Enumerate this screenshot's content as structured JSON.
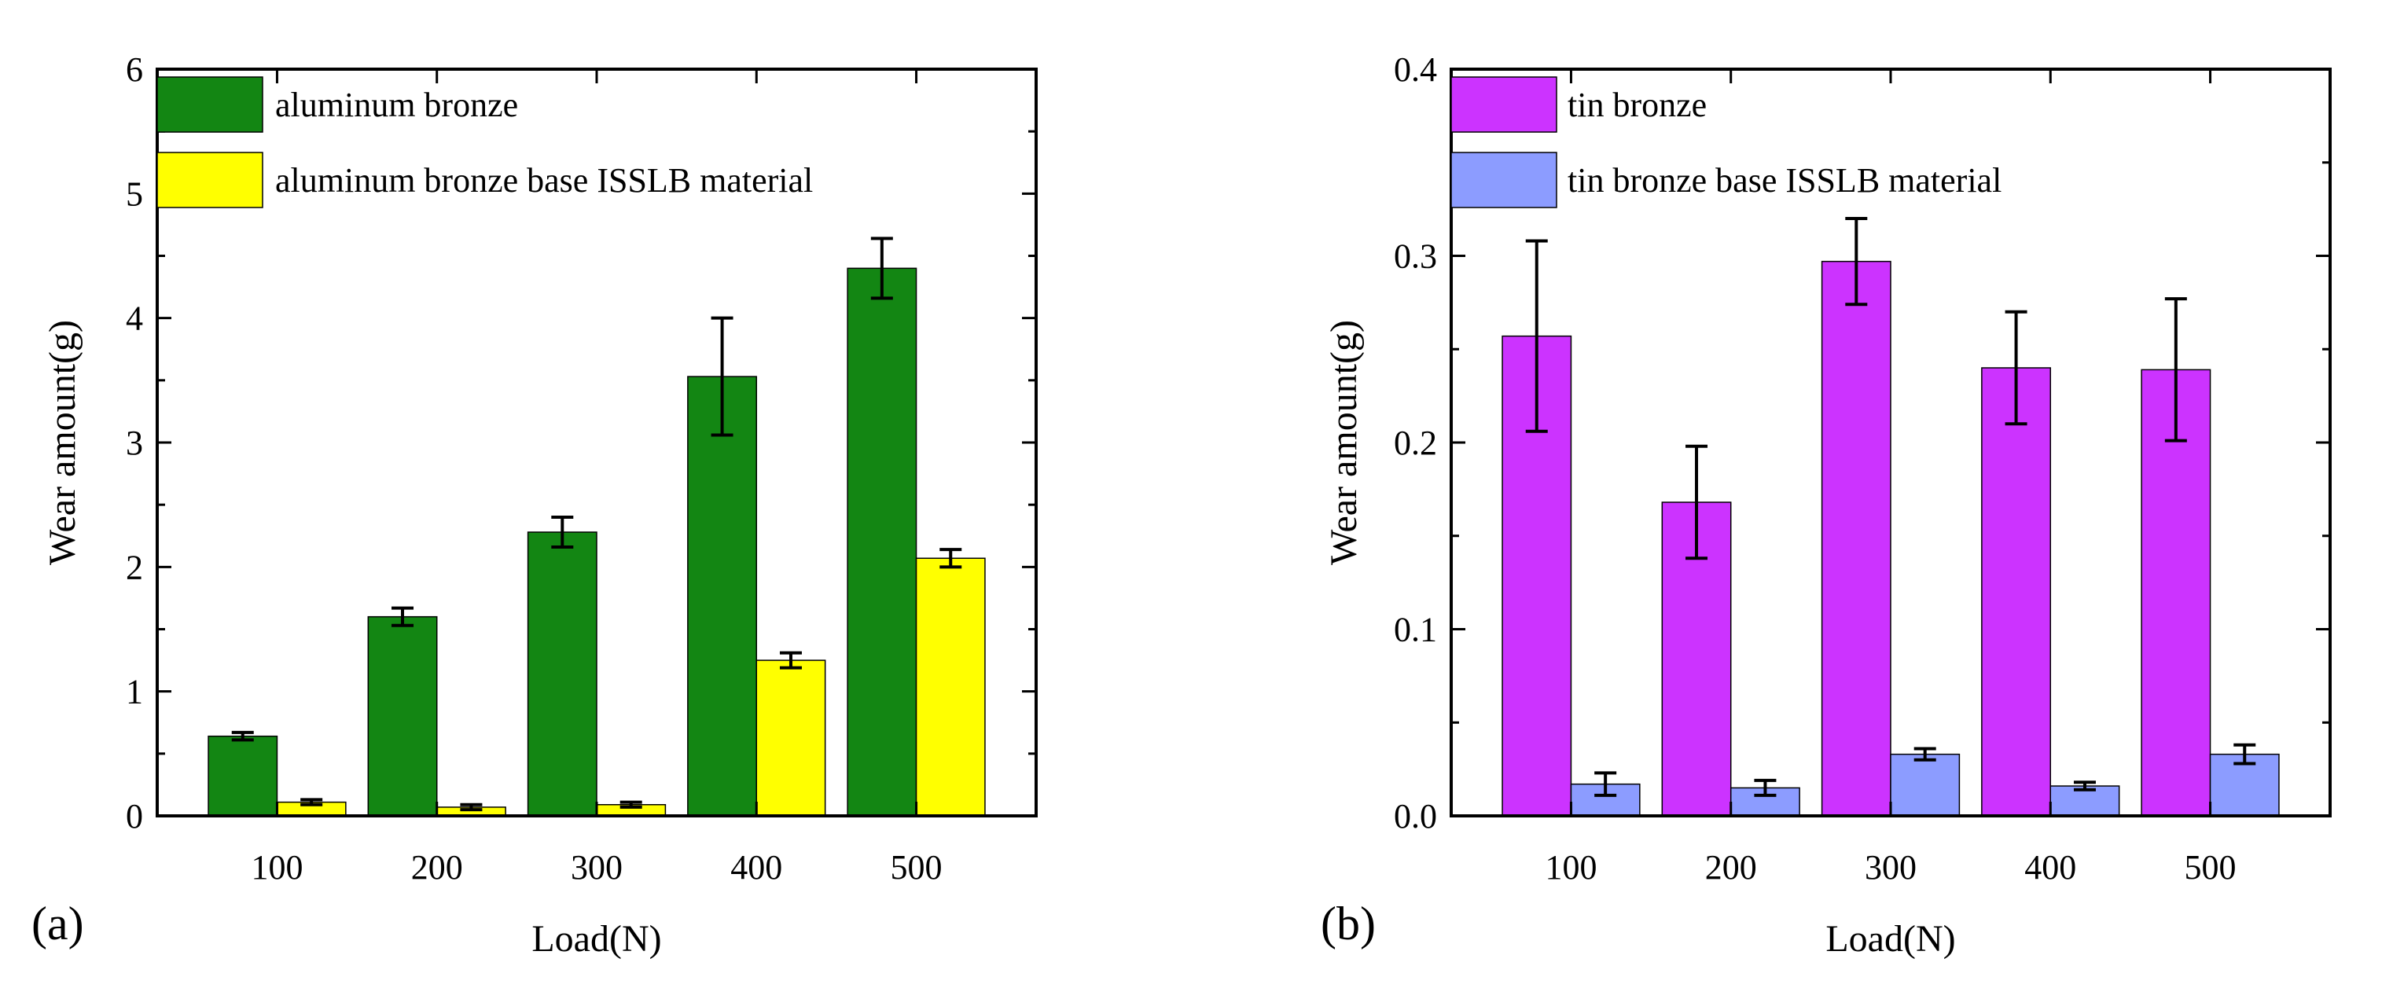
{
  "chart_data": [
    {
      "type": "bar",
      "panel_label": "(a)",
      "xlabel": "Load(N)",
      "ylabel": "Wear amount(g)",
      "ylim": [
        0,
        6
      ],
      "yticks": [
        "0",
        "1",
        "2",
        "3",
        "4",
        "5",
        "6"
      ],
      "categories": [
        "100",
        "200",
        "300",
        "400",
        "500"
      ],
      "legend_position": "top-left",
      "series": [
        {
          "name": "aluminum bronze",
          "color": "#138613",
          "values": [
            0.64,
            1.6,
            2.28,
            3.53,
            4.4
          ],
          "errors": [
            0.03,
            0.07,
            0.12,
            0.47,
            0.24
          ]
        },
        {
          "name": "aluminum bronze base ISSLB material",
          "color": "#ffff00",
          "values": [
            0.11,
            0.07,
            0.09,
            1.25,
            2.07
          ],
          "errors": [
            0.02,
            0.02,
            0.02,
            0.06,
            0.07
          ]
        }
      ]
    },
    {
      "type": "bar",
      "panel_label": "(b)",
      "xlabel": "Load(N)",
      "ylabel": "Wear amount(g)",
      "ylim": [
        0,
        0.4
      ],
      "yticks": [
        "0.0",
        "0.1",
        "0.2",
        "0.3",
        "0.4"
      ],
      "categories": [
        "100",
        "200",
        "300",
        "400",
        "500"
      ],
      "legend_position": "top-left",
      "series": [
        {
          "name": "tin bronze",
          "color": "#cc33ff",
          "values": [
            0.257,
            0.168,
            0.297,
            0.24,
            0.239
          ],
          "errors": [
            0.051,
            0.03,
            0.023,
            0.03,
            0.038
          ]
        },
        {
          "name": "tin bronze base ISSLB material",
          "color": "#8c9cff",
          "values": [
            0.017,
            0.015,
            0.033,
            0.016,
            0.033
          ],
          "errors": [
            0.006,
            0.004,
            0.003,
            0.002,
            0.005
          ]
        }
      ]
    }
  ]
}
